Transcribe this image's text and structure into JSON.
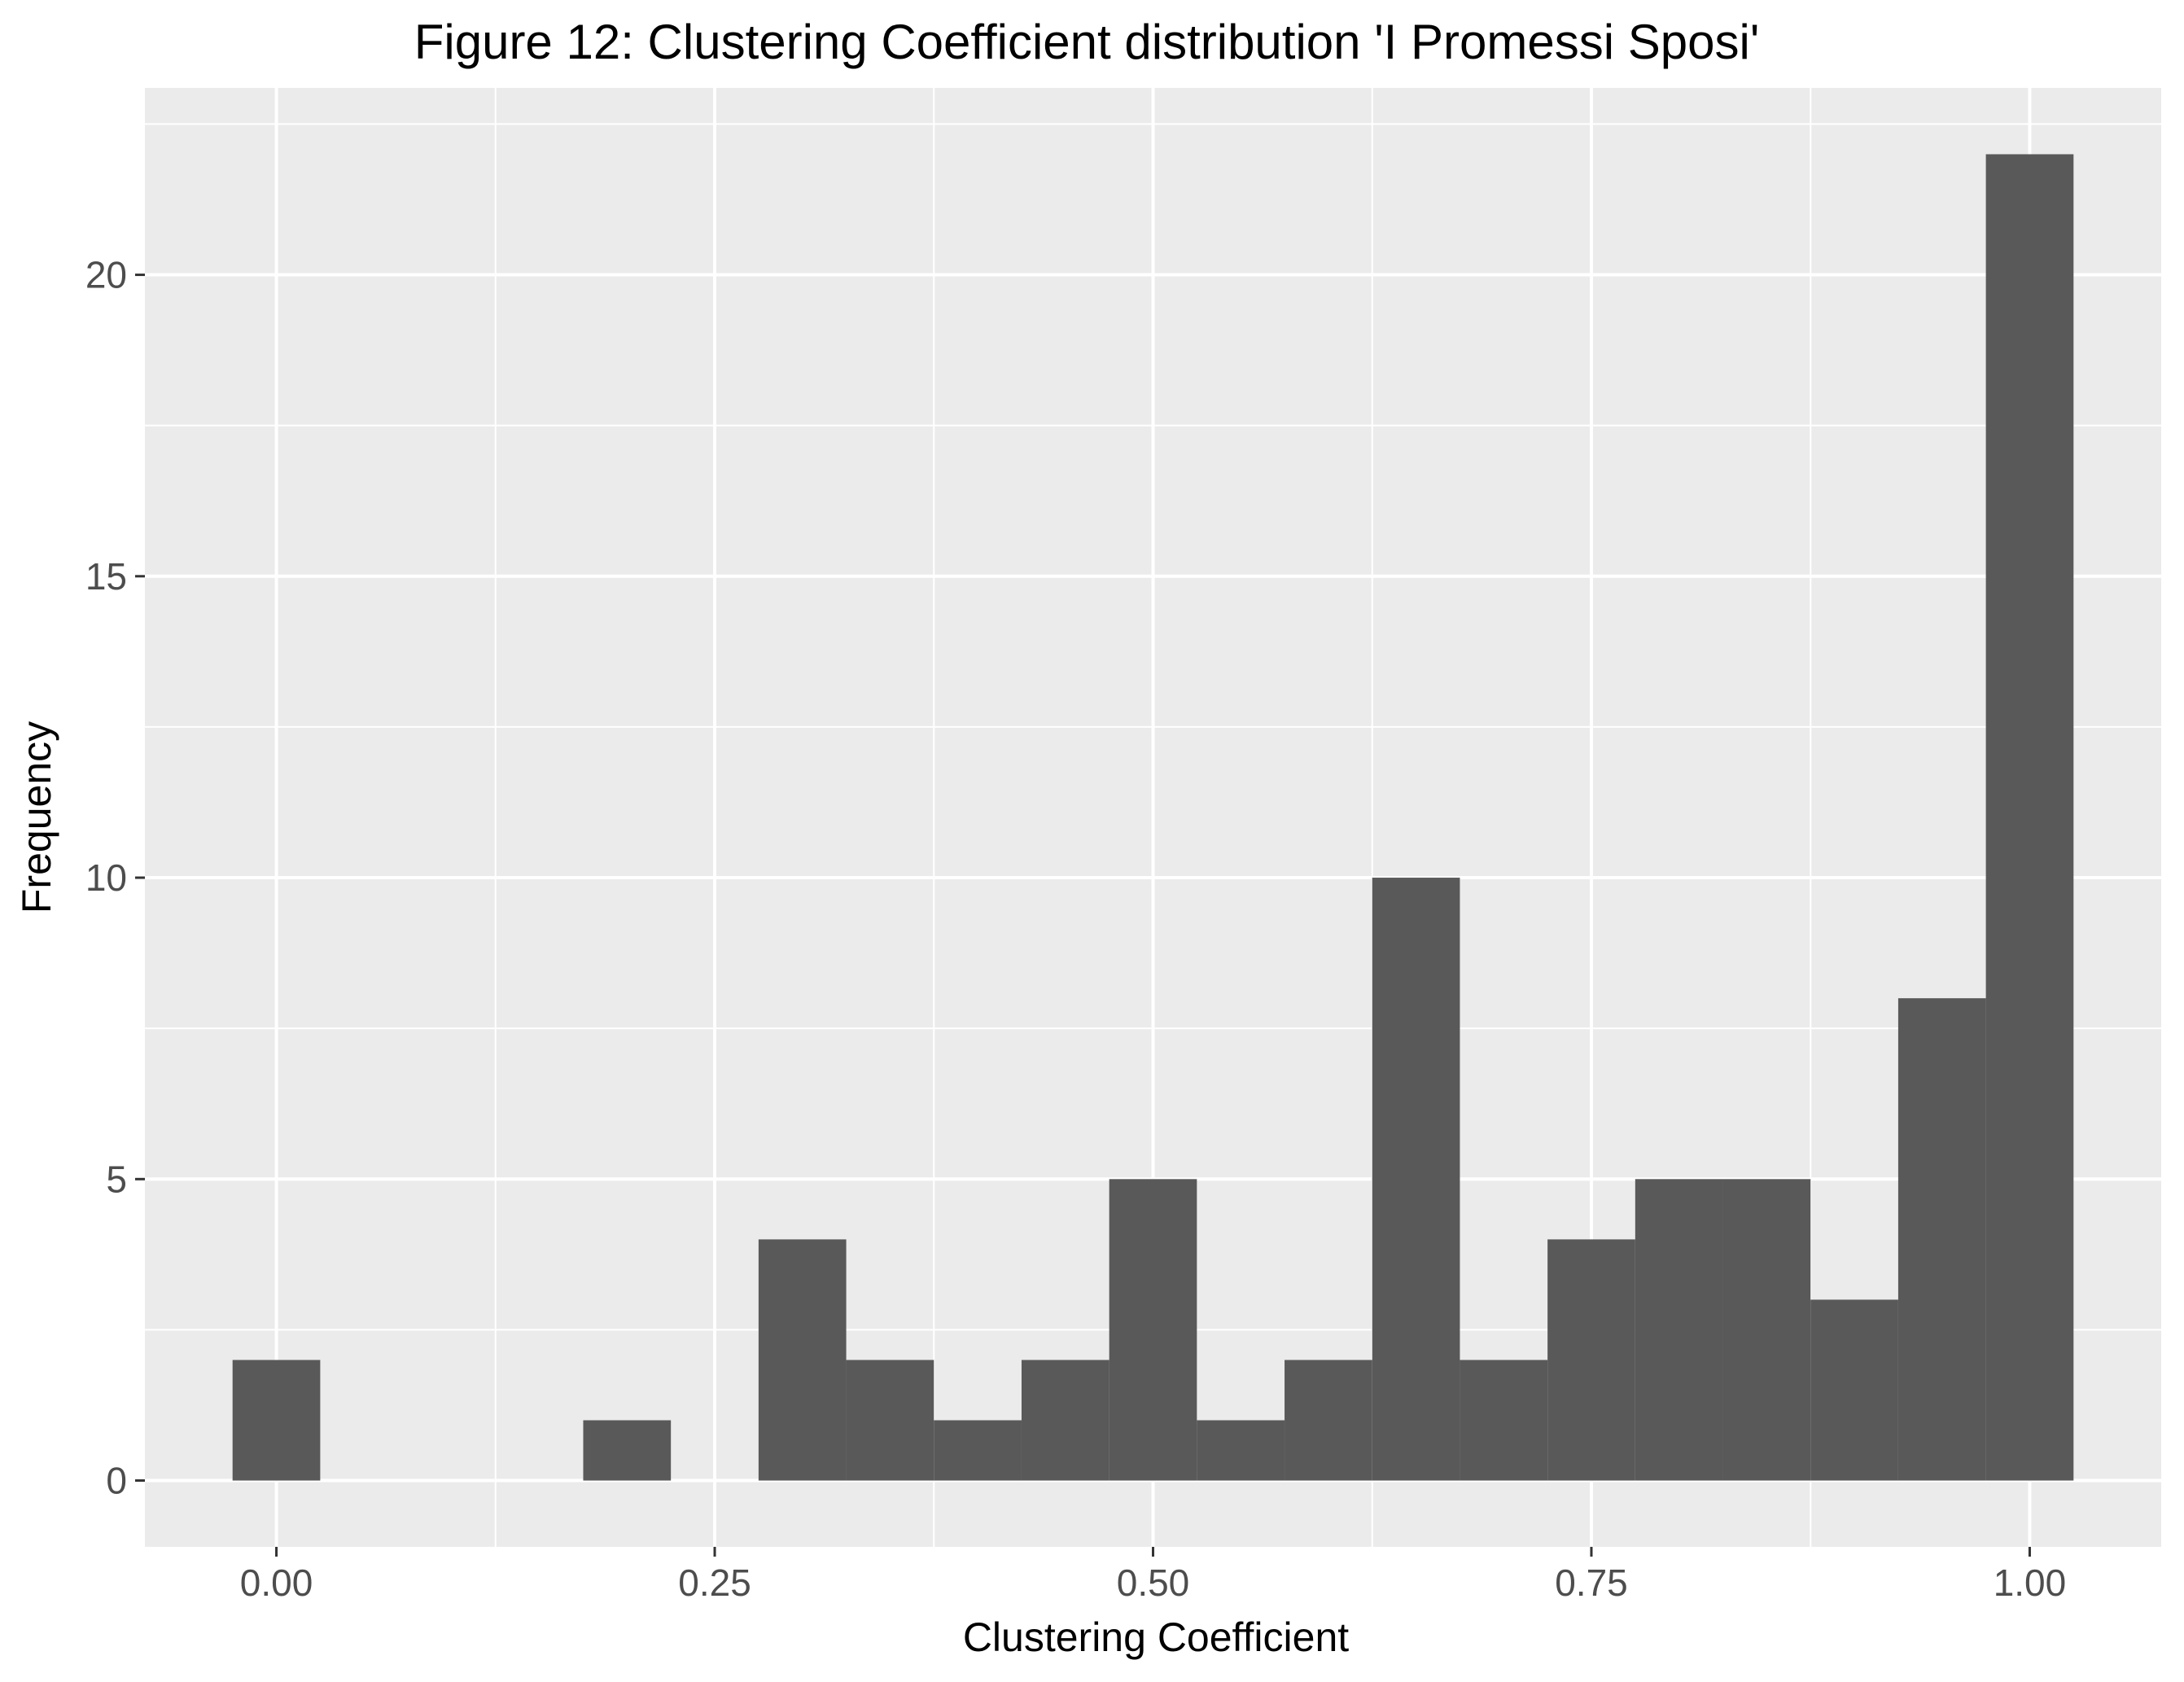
{
  "chart_data": {
    "type": "bar",
    "title": "Figure 12: Clustering Coefficient distribution 'I Promessi Sposi'",
    "xlabel": "Clustering Coefficient",
    "ylabel": "Frequency",
    "x_ticks": [
      "0.00",
      "0.25",
      "0.50",
      "0.75",
      "1.00"
    ],
    "y_ticks": [
      "0",
      "5",
      "10",
      "15",
      "20"
    ],
    "xlim": [
      -0.075,
      1.075
    ],
    "ylim": [
      -1.1,
      23.1
    ],
    "bin_width": 0.05,
    "bin_centers": [
      0.0,
      0.05,
      0.1,
      0.15,
      0.2,
      0.25,
      0.3,
      0.35,
      0.4,
      0.45,
      0.5,
      0.55,
      0.6,
      0.65,
      0.7,
      0.75,
      0.8,
      0.85,
      0.9,
      0.95,
      1.0
    ],
    "values": [
      2,
      0,
      0,
      0,
      1,
      0,
      4,
      2,
      1,
      2,
      5,
      1,
      2,
      10,
      2,
      4,
      5,
      5,
      3,
      8,
      22
    ],
    "grid": true,
    "colors": {
      "panel": "#ebebeb",
      "grid": "#ffffff",
      "bar": "#595959"
    }
  }
}
